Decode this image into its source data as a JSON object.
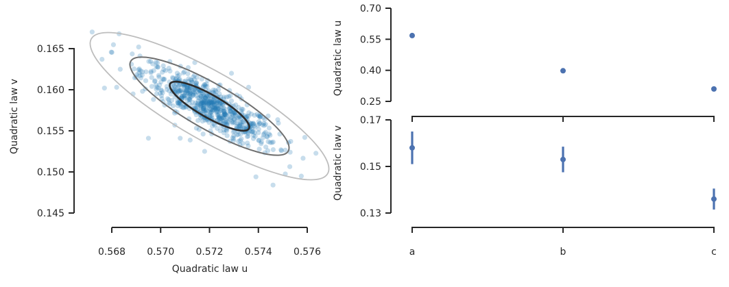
{
  "chart_data": [
    {
      "type": "scatter",
      "title": "",
      "xlabel": "Quadratic law u",
      "ylabel": "Quadratic law v",
      "xlim": [
        0.5665,
        0.5765
      ],
      "ylim": [
        0.1445,
        0.1685
      ],
      "xticks": [
        0.568,
        0.57,
        0.572,
        0.574,
        0.576
      ],
      "xtick_labels": [
        "0.568",
        "0.570",
        "0.572",
        "0.574",
        "0.576"
      ],
      "yticks": [
        0.145,
        0.15,
        0.155,
        0.16,
        0.165
      ],
      "ytick_labels": [
        "0.145",
        "0.150",
        "0.155",
        "0.160",
        "0.165"
      ],
      "point_color": "#1f77b4",
      "distribution": {
        "mean_u": 0.572,
        "mean_v": 0.158,
        "sd_u": 0.00138,
        "sd_v": 0.00253,
        "correlation": -0.85,
        "n_points": 700
      },
      "outliers": [
        {
          "u": 0.5683,
          "v": 0.1668
        },
        {
          "u": 0.5691,
          "v": 0.1652
        },
        {
          "u": 0.5676,
          "v": 0.1637
        },
        {
          "u": 0.5677,
          "v": 0.1602
        },
        {
          "u": 0.5682,
          "v": 0.1603
        },
        {
          "u": 0.5695,
          "v": 0.1541
        },
        {
          "u": 0.5729,
          "v": 0.162
        },
        {
          "u": 0.5744,
          "v": 0.1568
        },
        {
          "u": 0.5753,
          "v": 0.1524
        },
        {
          "u": 0.5746,
          "v": 0.1484
        },
        {
          "u": 0.5739,
          "v": 0.1494
        },
        {
          "u": 0.5759,
          "v": 0.1542
        },
        {
          "u": 0.5736,
          "v": 0.1603
        },
        {
          "u": 0.5708,
          "v": 0.1541
        },
        {
          "u": 0.5718,
          "v": 0.1525
        }
      ],
      "contours": [
        {
          "level": "1 sd",
          "scale": 1.0,
          "color": "#2b2b2b",
          "width": 2.6
        },
        {
          "level": "2 sd",
          "scale": 2.0,
          "color": "#6f6f6f",
          "width": 2.0
        },
        {
          "level": "3 sd",
          "scale": 3.0,
          "color": "#bdbdbd",
          "width": 1.8
        }
      ]
    },
    {
      "type": "errorbar",
      "title": "",
      "xlabel": "",
      "ylabel": "Quadratic law u",
      "categories": [
        "a",
        "b",
        "c"
      ],
      "values": [
        0.568,
        0.398,
        0.31
      ],
      "errors": [
        0.002,
        0.002,
        0.002
      ],
      "ylim": [
        0.25,
        0.7
      ],
      "yticks": [
        0.25,
        0.4,
        0.55,
        0.7
      ],
      "ytick_labels": [
        "0.25",
        "0.40",
        "0.55",
        "0.70"
      ],
      "color": "#4c72b0"
    },
    {
      "type": "errorbar",
      "title": "",
      "xlabel": "",
      "ylabel": "Quadratic law v",
      "categories": [
        "a",
        "b",
        "c"
      ],
      "values": [
        0.158,
        0.153,
        0.136
      ],
      "errors": [
        0.007,
        0.0055,
        0.0045
      ],
      "ylim": [
        0.13,
        0.17
      ],
      "yticks": [
        0.13,
        0.15,
        0.17
      ],
      "ytick_labels": [
        "0.13",
        "0.15",
        "0.17"
      ],
      "xtick_labels": [
        "a",
        "b",
        "c"
      ],
      "color": "#4c72b0"
    }
  ]
}
